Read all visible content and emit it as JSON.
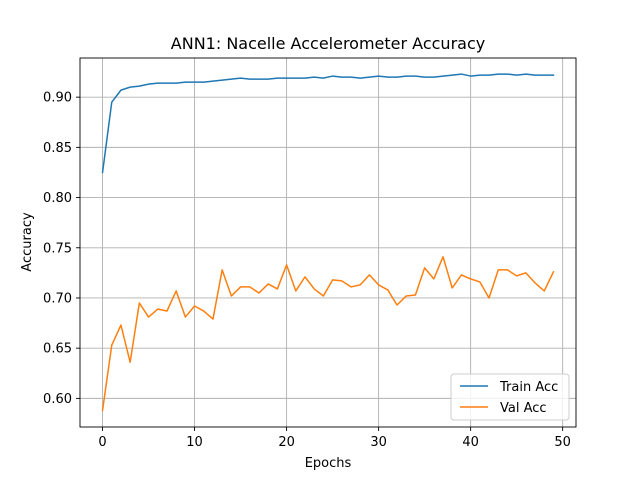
{
  "chart_data": {
    "type": "line",
    "title": "ANN1: Nacelle Accelerometer Accuracy",
    "xlabel": "Epochs",
    "ylabel": "Accuracy",
    "xlim": [
      -2.45,
      51.45
    ],
    "ylim": [
      0.5715,
      0.939
    ],
    "x_ticks": [
      0,
      10,
      20,
      30,
      40,
      50
    ],
    "x_tick_labels": [
      "0",
      "10",
      "20",
      "30",
      "40",
      "50"
    ],
    "y_ticks": [
      0.6,
      0.65,
      0.7,
      0.75,
      0.8,
      0.85,
      0.9
    ],
    "y_tick_labels": [
      "0.60",
      "0.65",
      "0.70",
      "0.75",
      "0.80",
      "0.85",
      "0.90"
    ],
    "grid": true,
    "legend_position": "lower-right",
    "x": [
      0,
      1,
      2,
      3,
      4,
      5,
      6,
      7,
      8,
      9,
      10,
      11,
      12,
      13,
      14,
      15,
      16,
      17,
      18,
      19,
      20,
      21,
      22,
      23,
      24,
      25,
      26,
      27,
      28,
      29,
      30,
      31,
      32,
      33,
      34,
      35,
      36,
      37,
      38,
      39,
      40,
      41,
      42,
      43,
      44,
      45,
      46,
      47,
      48,
      49
    ],
    "series": [
      {
        "name": "Train Acc",
        "color": "#1f77b4",
        "values": [
          0.825,
          0.895,
          0.907,
          0.91,
          0.911,
          0.913,
          0.914,
          0.914,
          0.914,
          0.915,
          0.915,
          0.915,
          0.916,
          0.917,
          0.918,
          0.919,
          0.918,
          0.918,
          0.918,
          0.919,
          0.919,
          0.919,
          0.919,
          0.92,
          0.919,
          0.921,
          0.92,
          0.92,
          0.919,
          0.92,
          0.921,
          0.92,
          0.92,
          0.921,
          0.921,
          0.92,
          0.92,
          0.921,
          0.922,
          0.923,
          0.921,
          0.922,
          0.922,
          0.923,
          0.923,
          0.922,
          0.923,
          0.922,
          0.922,
          0.922
        ]
      },
      {
        "name": "Val Acc",
        "color": "#ff7f0e",
        "values": [
          0.588,
          0.653,
          0.673,
          0.636,
          0.695,
          0.681,
          0.689,
          0.687,
          0.707,
          0.681,
          0.692,
          0.687,
          0.679,
          0.728,
          0.702,
          0.711,
          0.711,
          0.705,
          0.714,
          0.709,
          0.733,
          0.707,
          0.721,
          0.709,
          0.702,
          0.718,
          0.717,
          0.711,
          0.713,
          0.723,
          0.713,
          0.708,
          0.693,
          0.702,
          0.703,
          0.73,
          0.719,
          0.741,
          0.71,
          0.723,
          0.719,
          0.716,
          0.7,
          0.728,
          0.728,
          0.722,
          0.725,
          0.715,
          0.707,
          0.726
        ]
      }
    ]
  }
}
